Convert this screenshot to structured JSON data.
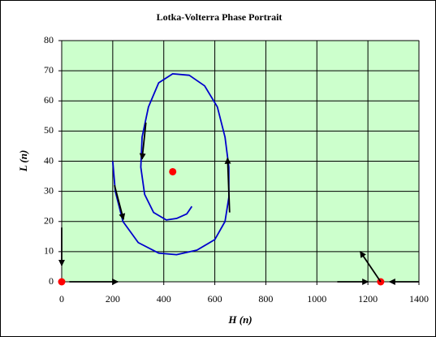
{
  "chart_data": {
    "type": "line",
    "title": "Lotka-Volterra Phase Portrait",
    "x_label": "H (n)",
    "y_label": "L (n)",
    "xlim": [
      0,
      1400
    ],
    "xticks": [
      0,
      200,
      400,
      600,
      800,
      1000,
      1200,
      1400
    ],
    "ylim": [
      0,
      80
    ],
    "yticks": [
      0,
      10,
      20,
      30,
      40,
      50,
      60,
      70,
      80
    ],
    "grid": true,
    "background": "#ccffcc",
    "series": [
      {
        "color": "#0000cc",
        "x": [
          200,
          210,
          240,
          300,
          380,
          450,
          530,
          600,
          640,
          655,
          655,
          640,
          610,
          560,
          500,
          435,
          380,
          340,
          315,
          310,
          325,
          360,
          410,
          450,
          490,
          510
        ],
        "values": [
          40,
          30,
          20,
          13,
          9.5,
          9,
          10.5,
          14,
          20,
          28,
          38,
          48,
          58,
          65,
          68.5,
          69,
          66,
          58,
          48,
          38,
          29,
          23,
          20.5,
          21,
          22.5,
          25
        ]
      },
      {
        "color": "#ff0000",
        "style": "markers",
        "x": [
          0,
          1250,
          435
        ],
        "values": [
          0,
          0,
          36.5
        ]
      }
    ],
    "arrows": [
      {
        "x": [
          0,
          0
        ],
        "y": [
          18,
          5.4
        ]
      },
      {
        "x": [
          207,
          242
        ],
        "y": [
          32,
          20.7
        ]
      },
      {
        "x": [
          330,
          315
        ],
        "y": [
          52.8,
          40.7
        ]
      },
      {
        "x": [
          658,
          650
        ],
        "y": [
          23,
          41
        ]
      },
      {
        "x": [
          30,
          220
        ],
        "y": [
          0,
          0
        ]
      },
      {
        "x": [
          1080,
          1200
        ],
        "y": [
          0,
          0
        ]
      },
      {
        "x": [
          1400,
          1285
        ],
        "y": [
          0,
          0
        ]
      },
      {
        "x": [
          1250,
          1170
        ],
        "y": [
          0,
          10
        ]
      }
    ]
  }
}
